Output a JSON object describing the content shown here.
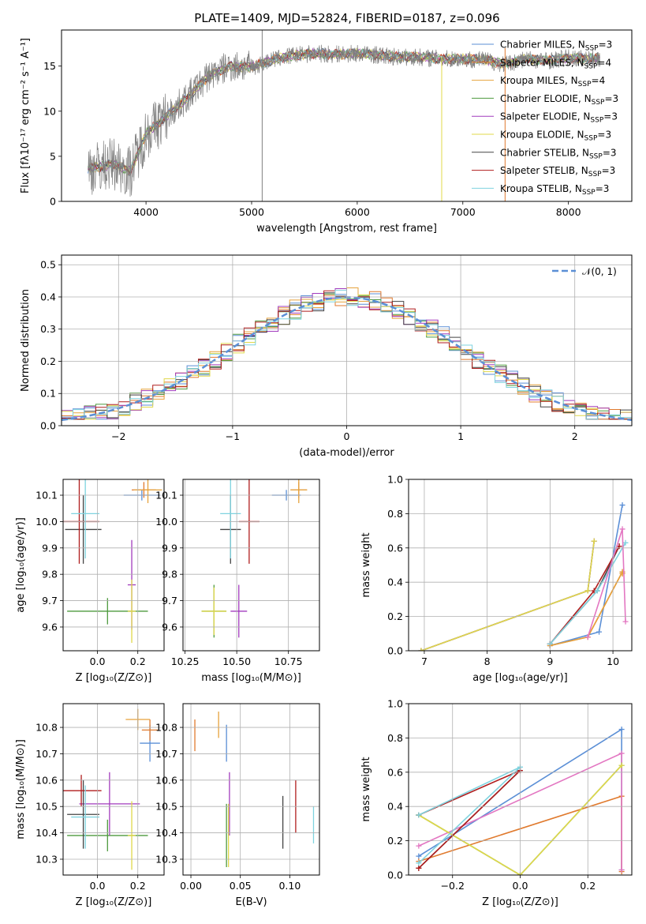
{
  "title": "PLATE=1409, MJD=52824, FIBERID=0187, z=0.096",
  "colors": {
    "Chabrier MILES": "#5b8fd6",
    "Salpeter MILES": "#e07a2e",
    "Kroupa MILES": "#e6a23c",
    "Chabrier ELODIE": "#4e9a3e",
    "Salpeter ELODIE": "#a23bbd",
    "Kroupa ELODIE": "#e0d84a",
    "Chabrier STELIB": "#444444",
    "Salpeter STELIB": "#b01d1d",
    "Kroupa STELIB": "#7fd3df",
    "data": "#808080",
    "normal": "#5b8fd6"
  },
  "chart_data": [
    {
      "type": "line",
      "id": "spectrum",
      "title": "PLATE=1409, MJD=52824, FIBERID=0187, z=0.096",
      "xlabel": "wavelength [Angstrom, rest frame]",
      "ylabel": "Flux [fλ10⁻¹⁷ erg cm⁻² s⁻¹ A⁻¹]",
      "xlim": [
        3200,
        8600
      ],
      "ylim": [
        0,
        19
      ],
      "xticks": [
        "4000",
        "5000",
        "6000",
        "7000",
        "8000"
      ],
      "yticks": [
        "0",
        "5",
        "10",
        "15"
      ],
      "legend_position": "top-right",
      "legend": [
        {
          "label": "Chabrier MILES, N",
          "sub": "SSP",
          "val": "=3",
          "series": "Chabrier MILES"
        },
        {
          "label": "Salpeter MILES, N",
          "sub": "SSP",
          "val": "=4",
          "series": "Salpeter MILES"
        },
        {
          "label": "Kroupa MILES, N",
          "sub": "SSP",
          "val": "=4",
          "series": "Kroupa MILES"
        },
        {
          "label": "Chabrier ELODIE, N",
          "sub": "SSP",
          "val": "=3",
          "series": "Chabrier ELODIE"
        },
        {
          "label": "Salpeter ELODIE, N",
          "sub": "SSP",
          "val": "=3",
          "series": "Salpeter ELODIE"
        },
        {
          "label": "Kroupa ELODIE, N",
          "sub": "SSP",
          "val": "=3",
          "series": "Kroupa ELODIE"
        },
        {
          "label": "Chabrier STELIB, N",
          "sub": "SSP",
          "val": "=3",
          "series": "Chabrier STELIB"
        },
        {
          "label": "Salpeter STELIB, N",
          "sub": "SSP",
          "val": "=3",
          "series": "Salpeter STELIB"
        },
        {
          "label": "Kroupa STELIB, N",
          "sub": "SSP",
          "val": "=3",
          "series": "Kroupa STELIB"
        }
      ],
      "continuum": {
        "x": [
          3450,
          3700,
          3850,
          4000,
          4200,
          4400,
          4600,
          4800,
          5000,
          5200,
          5400,
          5600,
          5800,
          6000,
          6200,
          6400,
          6600,
          6800,
          7000,
          7200,
          7400,
          7600,
          7800,
          8000,
          8200,
          8300
        ],
        "y": [
          3.6,
          4.2,
          3.3,
          7.5,
          9.5,
          11.6,
          14.0,
          15.0,
          14.9,
          15.7,
          16.2,
          16.4,
          16.3,
          16.4,
          16.2,
          16.0,
          16.0,
          15.8,
          15.8,
          15.7,
          15.2,
          15.8,
          15.6,
          15.9,
          15.8,
          15.9
        ]
      },
      "spikes": [
        {
          "x": 5100,
          "from": 0,
          "to": 19,
          "series": "data"
        },
        {
          "x": 6800,
          "from": 0,
          "to": 16,
          "series": "Kroupa ELODIE"
        },
        {
          "x": 7400,
          "from": 0,
          "to": 17,
          "series": "Salpeter MILES"
        }
      ]
    },
    {
      "type": "line",
      "id": "residuals",
      "xlabel": "(data-model)/error",
      "ylabel": "Normed distribution",
      "xlim": [
        -2.5,
        2.5
      ],
      "ylim": [
        0,
        0.53
      ],
      "xticks": [
        "−2",
        "−1",
        "0",
        "1",
        "2"
      ],
      "yticks": [
        "0.0",
        "0.1",
        "0.2",
        "0.3",
        "0.4",
        "0.5"
      ],
      "grid": true,
      "legend_position": "top-right",
      "legend_label": "𝒩(0, 1)",
      "normal": {
        "mean": 0,
        "sigma": 1
      },
      "histogram_bin_width": 0.1
    },
    {
      "type": "scatter",
      "id": "age-vs-Z",
      "xlabel": "Z [log₁₀(Z/Z⊙)]",
      "ylabel": "age  [log₁₀(age/yr)]",
      "xlim": [
        -0.17,
        0.33
      ],
      "ylim": [
        9.51,
        10.16
      ],
      "xticks": [
        "0.0",
        "0.2"
      ],
      "yticks": [
        "9.6",
        "9.7",
        "9.8",
        "9.9",
        "10.0",
        "10.1"
      ],
      "grid": true,
      "points": [
        {
          "series": "Chabrier MILES",
          "x": 0.22,
          "xerr": 0.09,
          "y": 10.1,
          "yerr": 0.02
        },
        {
          "series": "Salpeter MILES",
          "x": 0.23,
          "xerr": 0.06,
          "y": 10.12,
          "yerr": 0.03
        },
        {
          "series": "Kroupa MILES",
          "x": 0.25,
          "xerr": 0.07,
          "y": 10.12,
          "yerr": 0.05
        },
        {
          "series": "Chabrier ELODIE",
          "x": 0.05,
          "xerr": 0.2,
          "y": 9.66,
          "yerr": 0.05
        },
        {
          "series": "Salpeter ELODIE",
          "x": 0.17,
          "xerr": 0.02,
          "y": 9.76,
          "yerr": 0.17
        },
        {
          "series": "Kroupa ELODIE",
          "x": 0.17,
          "xerr": 0.02,
          "y": 9.66,
          "yerr": 0.12
        },
        {
          "series": "Chabrier STELIB",
          "x": -0.07,
          "xerr": 0.09,
          "y": 9.97,
          "yerr": 0.13
        },
        {
          "series": "Salpeter STELIB",
          "x": -0.09,
          "xerr": 0.1,
          "y": 10.0,
          "yerr": 0.16
        },
        {
          "series": "Kroupa STELIB",
          "x": -0.06,
          "xerr": 0.07,
          "y": 10.03,
          "yerr": 0.17
        }
      ]
    },
    {
      "type": "scatter",
      "id": "age-vs-mass",
      "xlabel": "mass [log₁₀(M/M⊙)]",
      "ylabel": "",
      "xlim": [
        10.24,
        10.9
      ],
      "ylim": [
        9.51,
        10.16
      ],
      "xticks": [
        "10.25",
        "10.50",
        "10.75"
      ],
      "yticks": [
        "9.6",
        "9.7",
        "9.8",
        "9.9",
        "10.0",
        "10.1"
      ],
      "grid": true,
      "points": [
        {
          "series": "Chabrier MILES",
          "x": 10.74,
          "xerr": 0.07,
          "y": 10.1,
          "yerr": 0.02
        },
        {
          "series": "Salpeter MILES",
          "x": 10.8,
          "xerr": 0.04,
          "y": 10.12,
          "yerr": 0.03
        },
        {
          "series": "Kroupa MILES",
          "x": 10.8,
          "xerr": 0.04,
          "y": 10.12,
          "yerr": 0.05
        },
        {
          "series": "Chabrier ELODIE",
          "x": 10.39,
          "xerr": 0.06,
          "y": 9.66,
          "yerr": 0.1
        },
        {
          "series": "Salpeter ELODIE",
          "x": 10.51,
          "xerr": 0.04,
          "y": 9.66,
          "yerr": 0.1
        },
        {
          "series": "Kroupa ELODIE",
          "x": 10.39,
          "xerr": 0.06,
          "y": 9.66,
          "yerr": 0.09
        },
        {
          "series": "Chabrier STELIB",
          "x": 10.47,
          "xerr": 0.05,
          "y": 9.97,
          "yerr": 0.13
        },
        {
          "series": "Salpeter STELIB",
          "x": 10.56,
          "xerr": 0.05,
          "y": 10.0,
          "yerr": 0.16
        },
        {
          "series": "Kroupa STELIB",
          "x": 10.47,
          "xerr": 0.05,
          "y": 10.03,
          "yerr": 0.17
        }
      ]
    },
    {
      "type": "line",
      "id": "massweight-vs-age",
      "xlabel": "age  [log₁₀(age/yr)]",
      "ylabel": "mass weight",
      "xlim": [
        6.75,
        10.3
      ],
      "ylim": [
        0,
        1.0
      ],
      "xticks": [
        "7",
        "8",
        "9",
        "10"
      ],
      "yticks": [
        "0.0",
        "0.2",
        "0.4",
        "0.6",
        "0.8",
        "1.0"
      ],
      "grid": true,
      "series": [
        {
          "name": "Chabrier MILES",
          "x": [
            9.0,
            9.78,
            10.15
          ],
          "y": [
            0.03,
            0.11,
            0.85
          ]
        },
        {
          "name": "Salpeter MILES",
          "x": [
            9.0,
            9.6,
            10.15,
            10.15
          ],
          "y": [
            0.03,
            0.08,
            0.46,
            0.45
          ]
        },
        {
          "name": "Kroupa MILES",
          "x": [
            9.0,
            9.6,
            10.15,
            10.15
          ],
          "y": [
            0.03,
            0.08,
            0.46,
            0.45
          ]
        },
        {
          "name": "Chabrier ELODIE",
          "x": [
            6.95,
            9.6,
            9.7
          ],
          "y": [
            0.0,
            0.35,
            0.64
          ]
        },
        {
          "name": "Salpeter ELODIE",
          "x": [
            6.95,
            9.6,
            9.7
          ],
          "y": [
            0.0,
            0.35,
            0.64
          ]
        },
        {
          "name": "Kroupa ELODIE",
          "x": [
            6.95,
            9.6,
            9.7
          ],
          "y": [
            0.0,
            0.35,
            0.64
          ]
        },
        {
          "name": "Chabrier STELIB",
          "x": [
            9.0,
            9.75,
            10.1
          ],
          "y": [
            0.04,
            0.35,
            0.61
          ]
        },
        {
          "name": "Salpeter STELIB",
          "x": [
            9.0,
            9.7,
            10.1
          ],
          "y": [
            0.04,
            0.35,
            0.61
          ]
        },
        {
          "name": "Kroupa STELIB",
          "x": [
            9.0,
            9.75,
            10.2
          ],
          "y": [
            0.04,
            0.35,
            0.63
          ]
        },
        {
          "name": "Salpeter MILES pink",
          "x": [
            9.6,
            10.15,
            10.2
          ],
          "y": [
            0.08,
            0.71,
            0.17
          ]
        }
      ]
    },
    {
      "type": "scatter",
      "id": "mass-vs-Z",
      "xlabel": "Z [log₁₀(Z/Z⊙)]",
      "ylabel": "mass [log₁₀(M/M⊙)]",
      "xlim": [
        -0.17,
        0.33
      ],
      "ylim": [
        10.24,
        10.89
      ],
      "xticks": [
        "0.0",
        "0.2"
      ],
      "yticks": [
        "10.3",
        "10.4",
        "10.5",
        "10.6",
        "10.7",
        "10.8"
      ],
      "grid": true,
      "points": [
        {
          "series": "Chabrier MILES",
          "x": 0.26,
          "xerr": 0.05,
          "y": 10.74,
          "yerr": 0.07
        },
        {
          "series": "Salpeter MILES",
          "x": 0.26,
          "xerr": 0.04,
          "y": 10.79,
          "yerr": 0.04
        },
        {
          "series": "Kroupa MILES",
          "x": 0.2,
          "xerr": 0.06,
          "y": 10.83,
          "yerr": 0.04
        },
        {
          "series": "Chabrier ELODIE",
          "x": 0.05,
          "xerr": 0.2,
          "y": 10.39,
          "yerr": 0.06
        },
        {
          "series": "Salpeter ELODIE",
          "x": 0.06,
          "xerr": 0.15,
          "y": 10.51,
          "yerr": 0.12
        },
        {
          "series": "Kroupa ELODIE",
          "x": 0.17,
          "xerr": 0.02,
          "y": 10.39,
          "yerr": 0.13
        },
        {
          "series": "Chabrier STELIB",
          "x": -0.07,
          "xerr": 0.08,
          "y": 10.47,
          "yerr": 0.13
        },
        {
          "series": "Salpeter STELIB",
          "x": -0.08,
          "xerr": 0.1,
          "y": 10.56,
          "yerr": 0.06
        },
        {
          "series": "Kroupa STELIB",
          "x": -0.06,
          "xerr": 0.07,
          "y": 10.46,
          "yerr": 0.12
        }
      ]
    },
    {
      "type": "scatter",
      "id": "mass-vs-EBV",
      "xlabel": "E(B-V)",
      "ylabel": "",
      "xlim": [
        -0.008,
        0.13
      ],
      "ylim": [
        10.24,
        10.89
      ],
      "xticks": [
        "0.00",
        "0.05",
        "0.10"
      ],
      "yticks": [
        "10.3",
        "10.4",
        "10.5",
        "10.6",
        "10.7",
        "10.8"
      ],
      "grid": true,
      "points": [
        {
          "series": "Chabrier MILES",
          "x": 0.036,
          "y": 10.74,
          "yerr": 0.07
        },
        {
          "series": "Salpeter MILES",
          "x": 0.004,
          "y": 10.77,
          "yerr": 0.06
        },
        {
          "series": "Kroupa MILES",
          "x": 0.028,
          "y": 10.81,
          "yerr": 0.05
        },
        {
          "series": "Chabrier ELODIE",
          "x": 0.036,
          "y": 10.39,
          "yerr": 0.12
        },
        {
          "series": "Salpeter ELODIE",
          "x": 0.039,
          "y": 10.51,
          "yerr": 0.12
        },
        {
          "series": "Kroupa ELODIE",
          "x": 0.038,
          "y": 10.39,
          "yerr": 0.12
        },
        {
          "series": "Chabrier STELIB",
          "x": 0.093,
          "y": 10.44,
          "yerr": 0.1
        },
        {
          "series": "Salpeter STELIB",
          "x": 0.106,
          "y": 10.5,
          "yerr": 0.1
        },
        {
          "series": "Kroupa STELIB",
          "x": 0.124,
          "y": 10.43,
          "yerr": 0.07
        }
      ]
    },
    {
      "type": "line",
      "id": "massweight-vs-Z",
      "xlabel": "Z [log₁₀(Z/Z⊙)]",
      "ylabel": "mass weight",
      "xlim": [
        -0.33,
        0.33
      ],
      "ylim": [
        0,
        1.0
      ],
      "xticks": [
        "−0.2",
        "0.0",
        "0.2"
      ],
      "yticks": [
        "0.0",
        "0.2",
        "0.4",
        "0.6",
        "0.8",
        "1.0"
      ],
      "grid": true,
      "series": [
        {
          "name": "Chabrier MILES",
          "x": [
            -0.3,
            0.3,
            0.3
          ],
          "y": [
            0.11,
            0.85,
            0.03
          ]
        },
        {
          "name": "Salpeter MILES",
          "x": [
            -0.3,
            0.3,
            0.3
          ],
          "y": [
            0.08,
            0.46,
            0.02
          ]
        },
        {
          "name": "Salpeter MILES pink",
          "x": [
            -0.3,
            0.3,
            0.3
          ],
          "y": [
            0.17,
            0.71,
            0.03
          ]
        },
        {
          "name": "Chabrier ELODIE",
          "x": [
            -0.3,
            0.0,
            0.3
          ],
          "y": [
            0.35,
            0.0,
            0.64
          ]
        },
        {
          "name": "Kroupa ELODIE",
          "x": [
            -0.3,
            0.0,
            0.3
          ],
          "y": [
            0.35,
            0.0,
            0.64
          ]
        },
        {
          "name": "Chabrier STELIB",
          "x": [
            -0.3,
            0.0
          ],
          "y": [
            0.04,
            0.61
          ]
        },
        {
          "name": "Salpeter STELIB",
          "x": [
            -0.3,
            0.0,
            -0.3
          ],
          "y": [
            0.04,
            0.61,
            0.35
          ]
        },
        {
          "name": "Kroupa STELIB",
          "x": [
            -0.3,
            0.0,
            -0.3
          ],
          "y": [
            0.07,
            0.63,
            0.35
          ]
        }
      ]
    }
  ]
}
